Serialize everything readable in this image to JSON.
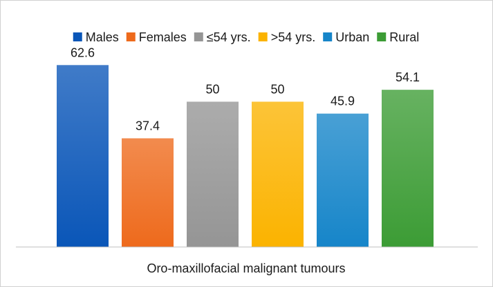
{
  "chart_data": {
    "type": "bar",
    "categories": [
      "Males",
      "Females",
      "≤54 yrs.",
      ">54 yrs.",
      "Urban",
      "Rural"
    ],
    "values": [
      62.6,
      37.4,
      50,
      50,
      45.9,
      54.1
    ],
    "value_labels": [
      "62.6",
      "37.4",
      "50",
      "50",
      "45.9",
      "54.1"
    ],
    "colors": [
      "#0a56b8",
      "#ee6a1c",
      "#959595",
      "#fbb300",
      "#1685c9",
      "#3c9c35"
    ],
    "title": "",
    "xlabel": "Oro-maxillofacial malignant tumours",
    "ylabel": "",
    "ylim": [
      0,
      70
    ],
    "grid": false,
    "legend_position": "top"
  }
}
